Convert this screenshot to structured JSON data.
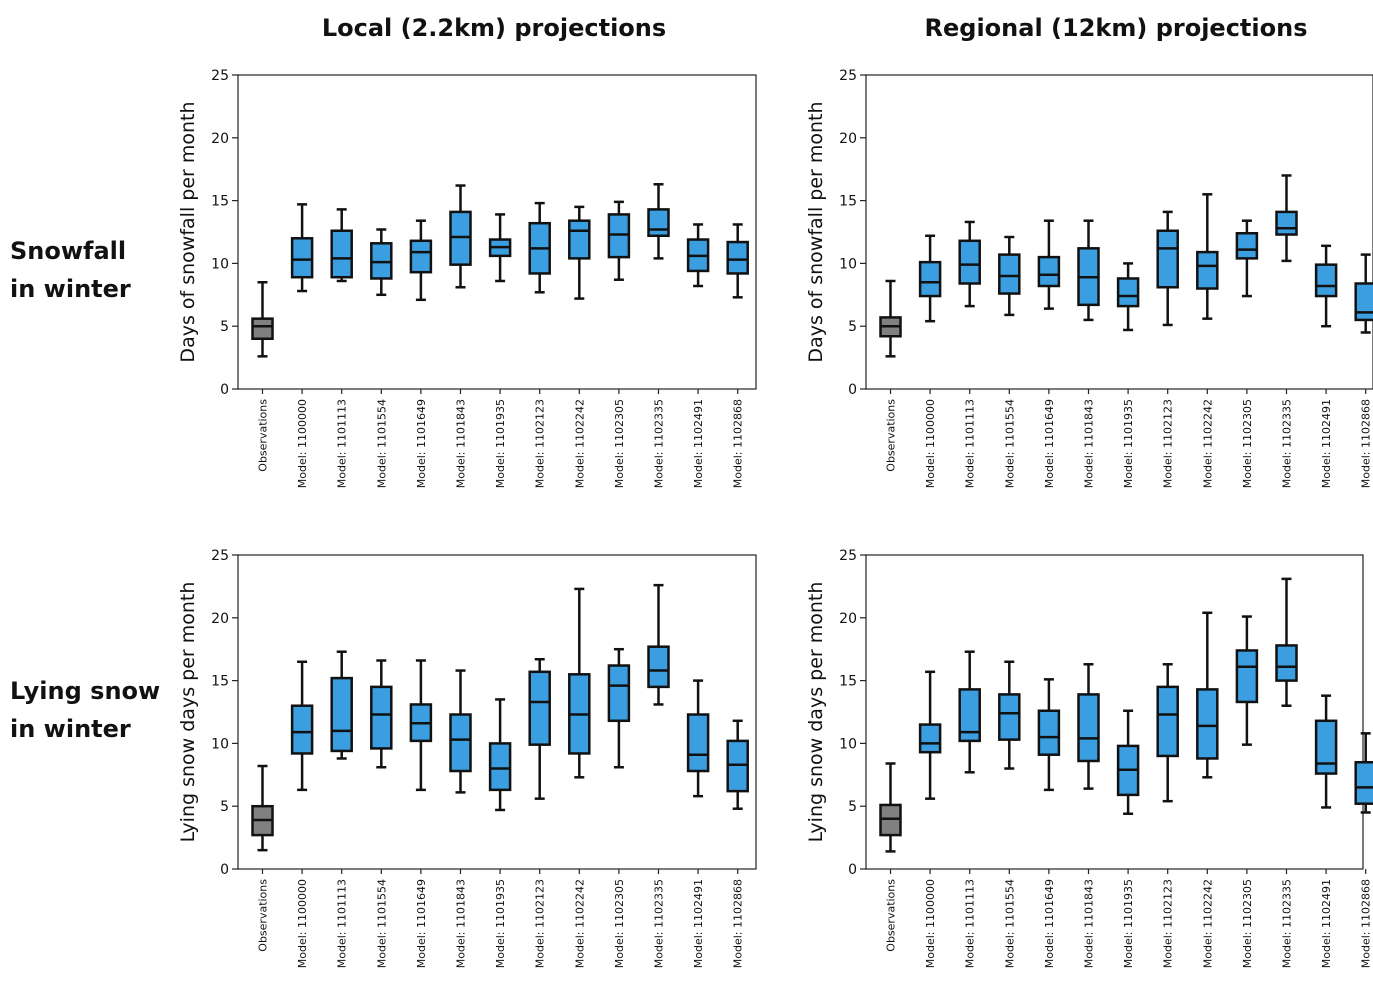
{
  "column_titles": [
    "Local (2.2km) projections",
    "Regional (12km) projections"
  ],
  "row_labels": [
    {
      "line1": "Snowfall",
      "line2": "in winter"
    },
    {
      "line1": "Lying snow",
      "line2": "in winter"
    }
  ],
  "colors": {
    "observations": "#808080",
    "model": "#3a9ee0",
    "stroke": "#111111"
  },
  "chart_data": [
    {
      "type": "box",
      "panel": "snowfall-local",
      "ylabel": "Days of snowfall per month",
      "ylim": [
        0,
        25
      ],
      "yticks": [
        0,
        5,
        10,
        15,
        20,
        25
      ],
      "categories": [
        "Observations",
        "Model: 1100000",
        "Model: 1101113",
        "Model: 1101554",
        "Model: 1101649",
        "Model: 1101843",
        "Model: 1101935",
        "Model: 1102123",
        "Model: 1102242",
        "Model: 1102305",
        "Model: 1102335",
        "Model: 1102491",
        "Model: 1102868"
      ],
      "boxes": [
        {
          "min": 2.6,
          "q1": 4.0,
          "median": 5.0,
          "q3": 5.6,
          "max": 8.5
        },
        {
          "min": 7.8,
          "q1": 8.9,
          "median": 10.3,
          "q3": 12.0,
          "max": 14.7
        },
        {
          "min": 8.6,
          "q1": 8.9,
          "median": 10.4,
          "q3": 12.6,
          "max": 14.3
        },
        {
          "min": 7.5,
          "q1": 8.8,
          "median": 10.1,
          "q3": 11.6,
          "max": 12.7
        },
        {
          "min": 7.1,
          "q1": 9.3,
          "median": 10.9,
          "q3": 11.8,
          "max": 13.4
        },
        {
          "min": 8.1,
          "q1": 9.9,
          "median": 12.1,
          "q3": 14.1,
          "max": 16.2
        },
        {
          "min": 8.6,
          "q1": 10.6,
          "median": 11.3,
          "q3": 11.9,
          "max": 13.9
        },
        {
          "min": 7.7,
          "q1": 9.2,
          "median": 11.2,
          "q3": 13.2,
          "max": 14.8
        },
        {
          "min": 7.2,
          "q1": 10.4,
          "median": 12.6,
          "q3": 13.4,
          "max": 14.5
        },
        {
          "min": 8.7,
          "q1": 10.5,
          "median": 12.3,
          "q3": 13.9,
          "max": 14.9
        },
        {
          "min": 10.4,
          "q1": 12.2,
          "median": 12.7,
          "q3": 14.3,
          "max": 16.3
        },
        {
          "min": 8.2,
          "q1": 9.4,
          "median": 10.6,
          "q3": 11.9,
          "max": 13.1
        },
        {
          "min": 7.3,
          "q1": 9.2,
          "median": 10.3,
          "q3": 11.7,
          "max": 13.1
        }
      ]
    },
    {
      "type": "box",
      "panel": "snowfall-regional",
      "ylabel": "Days of snowfall per month",
      "ylim": [
        0,
        25
      ],
      "yticks": [
        0,
        5,
        10,
        15,
        20,
        25
      ],
      "categories": [
        "Observations",
        "Model: 1100000",
        "Model: 1101113",
        "Model: 1101554",
        "Model: 1101649",
        "Model: 1101843",
        "Model: 1101935",
        "Model: 1102123",
        "Model: 1102242",
        "Model: 1102305",
        "Model: 1102335",
        "Model: 1102491",
        "Model: 1102868"
      ],
      "boxes": [
        {
          "min": 2.6,
          "q1": 4.2,
          "median": 5.0,
          "q3": 5.7,
          "max": 8.6
        },
        {
          "min": 5.4,
          "q1": 7.4,
          "median": 8.5,
          "q3": 10.1,
          "max": 12.2
        },
        {
          "min": 6.6,
          "q1": 8.4,
          "median": 9.9,
          "q3": 11.8,
          "max": 13.3
        },
        {
          "min": 5.9,
          "q1": 7.6,
          "median": 9.0,
          "q3": 10.7,
          "max": 12.1
        },
        {
          "min": 6.4,
          "q1": 8.2,
          "median": 9.1,
          "q3": 10.5,
          "max": 13.4
        },
        {
          "min": 5.5,
          "q1": 6.7,
          "median": 8.9,
          "q3": 11.2,
          "max": 13.4
        },
        {
          "min": 4.7,
          "q1": 6.6,
          "median": 7.4,
          "q3": 8.8,
          "max": 10.0
        },
        {
          "min": 5.1,
          "q1": 8.1,
          "median": 11.2,
          "q3": 12.6,
          "max": 14.1
        },
        {
          "min": 5.6,
          "q1": 8.0,
          "median": 9.8,
          "q3": 10.9,
          "max": 15.5
        },
        {
          "min": 7.4,
          "q1": 10.4,
          "median": 11.1,
          "q3": 12.4,
          "max": 13.4
        },
        {
          "min": 10.2,
          "q1": 12.3,
          "median": 12.8,
          "q3": 14.1,
          "max": 17.0
        },
        {
          "min": 5.0,
          "q1": 7.4,
          "median": 8.2,
          "q3": 9.9,
          "max": 11.4
        },
        {
          "min": 4.5,
          "q1": 5.5,
          "median": 6.1,
          "q3": 8.4,
          "max": 10.7
        }
      ]
    },
    {
      "type": "box",
      "panel": "lying-local",
      "ylabel": "Lying snow days per month",
      "ylim": [
        0,
        25
      ],
      "yticks": [
        0,
        5,
        10,
        15,
        20,
        25
      ],
      "categories": [
        "Observations",
        "Model: 1100000",
        "Model: 1101113",
        "Model: 1101554",
        "Model: 1101649",
        "Model: 1101843",
        "Model: 1101935",
        "Model: 1102123",
        "Model: 1102242",
        "Model: 1102305",
        "Model: 1102335",
        "Model: 1102491",
        "Model: 1102868"
      ],
      "boxes": [
        {
          "min": 1.5,
          "q1": 2.7,
          "median": 3.9,
          "q3": 5.0,
          "max": 8.2
        },
        {
          "min": 6.3,
          "q1": 9.2,
          "median": 10.9,
          "q3": 13.0,
          "max": 16.5
        },
        {
          "min": 8.8,
          "q1": 9.4,
          "median": 11.0,
          "q3": 15.2,
          "max": 17.3
        },
        {
          "min": 8.1,
          "q1": 9.6,
          "median": 12.3,
          "q3": 14.5,
          "max": 16.6
        },
        {
          "min": 6.3,
          "q1": 10.2,
          "median": 11.6,
          "q3": 13.1,
          "max": 16.6
        },
        {
          "min": 6.1,
          "q1": 7.8,
          "median": 10.3,
          "q3": 12.3,
          "max": 15.8
        },
        {
          "min": 4.7,
          "q1": 6.3,
          "median": 8.0,
          "q3": 10.0,
          "max": 13.5
        },
        {
          "min": 5.6,
          "q1": 9.9,
          "median": 13.3,
          "q3": 15.7,
          "max": 16.7
        },
        {
          "min": 7.3,
          "q1": 9.2,
          "median": 12.3,
          "q3": 15.5,
          "max": 22.3
        },
        {
          "min": 8.1,
          "q1": 11.8,
          "median": 14.6,
          "q3": 16.2,
          "max": 17.5
        },
        {
          "min": 13.1,
          "q1": 14.5,
          "median": 15.8,
          "q3": 17.7,
          "max": 22.6
        },
        {
          "min": 5.8,
          "q1": 7.8,
          "median": 9.1,
          "q3": 12.3,
          "max": 15.0
        },
        {
          "min": 4.8,
          "q1": 6.2,
          "median": 8.3,
          "q3": 10.2,
          "max": 11.8
        }
      ]
    },
    {
      "type": "box",
      "panel": "lying-regional",
      "ylabel": "Lying snow days per month",
      "ylim": [
        0,
        25
      ],
      "yticks": [
        0,
        5,
        10,
        15,
        20,
        25
      ],
      "categories": [
        "Observations",
        "Model: 1100000",
        "Model: 1101113",
        "Model: 1101554",
        "Model: 1101649",
        "Model: 1101843",
        "Model: 1101935",
        "Model: 1102123",
        "Model: 1102242",
        "Model: 1102305",
        "Model: 1102335",
        "Model: 1102491",
        "Model: 1102868"
      ],
      "boxes": [
        {
          "min": 1.4,
          "q1": 2.7,
          "median": 4.0,
          "q3": 5.1,
          "max": 8.4
        },
        {
          "min": 5.6,
          "q1": 9.3,
          "median": 10.0,
          "q3": 11.5,
          "max": 15.7
        },
        {
          "min": 7.7,
          "q1": 10.2,
          "median": 10.9,
          "q3": 14.3,
          "max": 17.3
        },
        {
          "min": 8.0,
          "q1": 10.3,
          "median": 12.4,
          "q3": 13.9,
          "max": 16.5
        },
        {
          "min": 6.3,
          "q1": 9.1,
          "median": 10.5,
          "q3": 12.6,
          "max": 15.1
        },
        {
          "min": 6.4,
          "q1": 8.6,
          "median": 10.4,
          "q3": 13.9,
          "max": 16.3
        },
        {
          "min": 4.4,
          "q1": 5.9,
          "median": 7.9,
          "q3": 9.8,
          "max": 12.6
        },
        {
          "min": 5.4,
          "q1": 9.0,
          "median": 12.3,
          "q3": 14.5,
          "max": 16.3
        },
        {
          "min": 7.3,
          "q1": 8.8,
          "median": 11.4,
          "q3": 14.3,
          "max": 20.4
        },
        {
          "min": 9.9,
          "q1": 13.3,
          "median": 16.1,
          "q3": 17.4,
          "max": 20.1
        },
        {
          "min": 13.0,
          "q1": 15.0,
          "median": 16.1,
          "q3": 17.8,
          "max": 23.1
        },
        {
          "min": 4.9,
          "q1": 7.6,
          "median": 8.4,
          "q3": 11.8,
          "max": 13.8
        },
        {
          "min": 4.5,
          "q1": 5.2,
          "median": 6.5,
          "q3": 8.5,
          "max": 10.8
        }
      ]
    }
  ]
}
